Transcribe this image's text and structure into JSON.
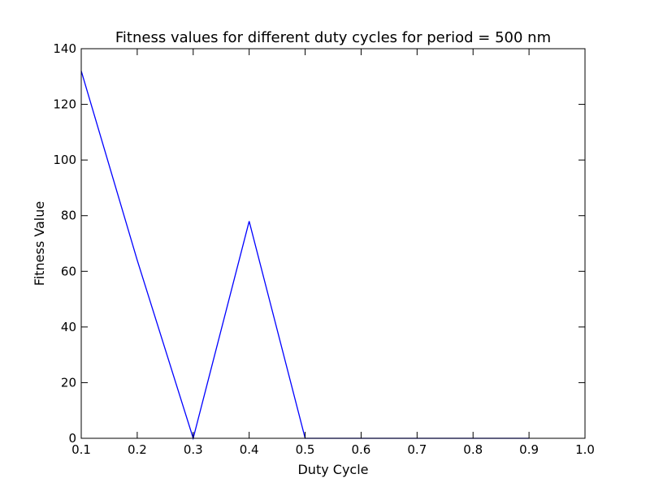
{
  "chart_data": {
    "type": "line",
    "title": "Fitness values for different duty cycles for period = 500 nm",
    "xlabel": "Duty Cycle",
    "ylabel": "Fitness Value",
    "xlim": [
      0.1,
      1.0
    ],
    "ylim": [
      0,
      140
    ],
    "xticks": [
      0.1,
      0.2,
      0.3,
      0.4,
      0.5,
      0.6,
      0.7,
      0.8,
      0.9,
      1.0
    ],
    "xtick_labels": [
      "0.1",
      "0.2",
      "0.3",
      "0.4",
      "0.5",
      "0.6",
      "0.7",
      "0.8",
      "0.9",
      "1.0"
    ],
    "yticks": [
      0,
      20,
      40,
      60,
      80,
      100,
      120,
      140
    ],
    "ytick_labels": [
      "0",
      "20",
      "40",
      "60",
      "80",
      "100",
      "120",
      "140"
    ],
    "grid": false,
    "legend": "none",
    "series": [
      {
        "color": "#0000ff",
        "x": [
          0.1,
          0.2,
          0.3,
          0.4,
          0.5,
          0.6,
          0.7,
          0.8,
          0.9
        ],
        "y": [
          132,
          64,
          0,
          78,
          0,
          0,
          0,
          0,
          0
        ]
      }
    ]
  }
}
